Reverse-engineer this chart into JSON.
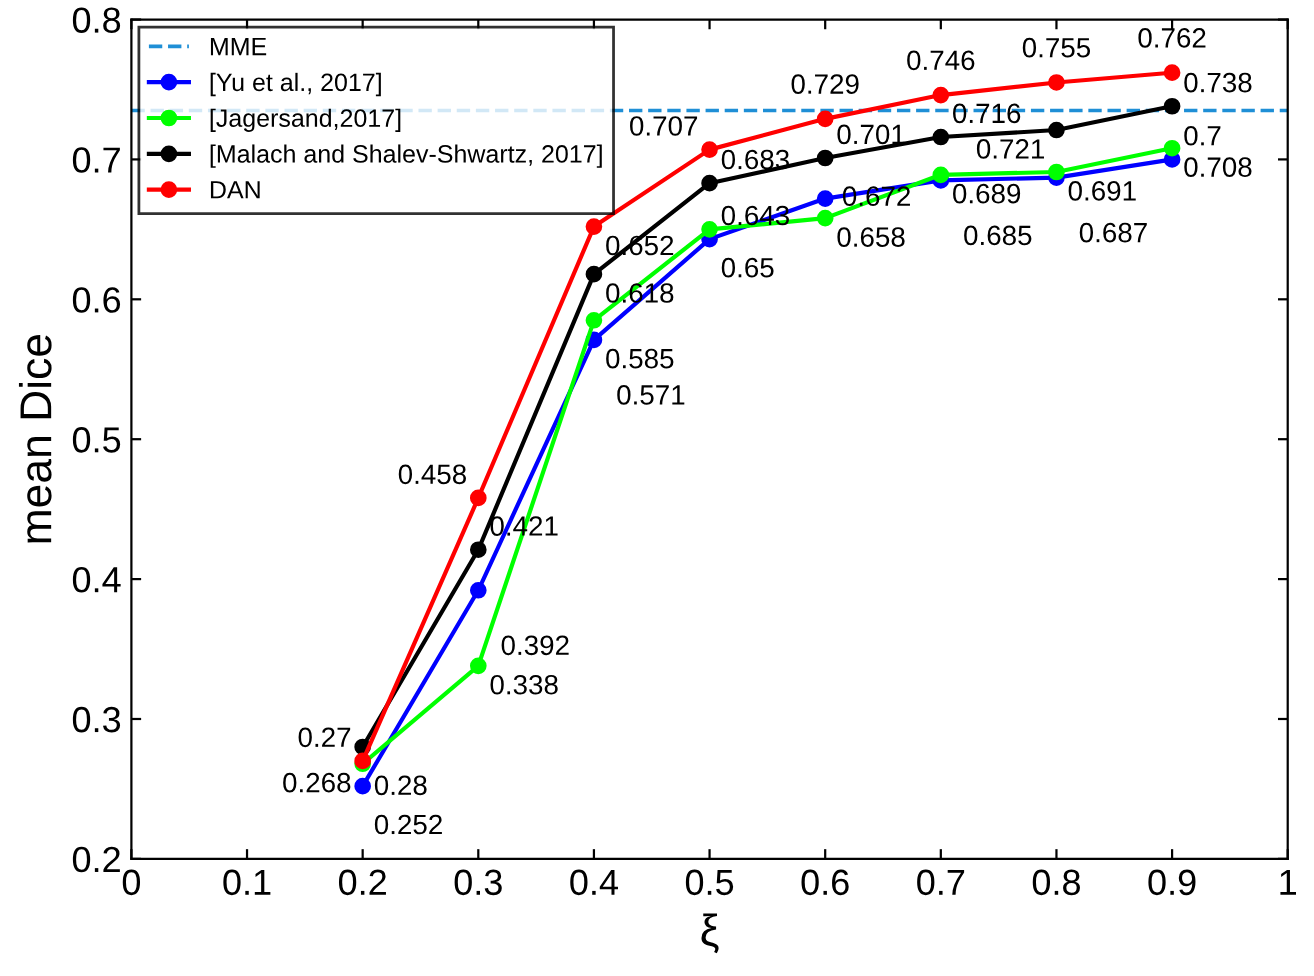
{
  "chart_data": {
    "type": "line",
    "xlabel": "ξ",
    "ylabel": "mean Dice",
    "x": [
      0.2,
      0.3,
      0.4,
      0.5,
      0.6,
      0.7,
      0.8,
      0.9
    ],
    "series": [
      {
        "name": "[Yu et al., 2017]",
        "color": "#0000ff",
        "values": [
          0.252,
          0.392,
          0.571,
          0.643,
          0.672,
          0.685,
          0.687,
          0.7
        ]
      },
      {
        "name": "[Jagersand,2017]",
        "color": "#00ff00",
        "values": [
          0.268,
          0.338,
          0.585,
          0.65,
          0.658,
          0.689,
          0.691,
          0.708
        ]
      },
      {
        "name": "[Malach and Shalev-Shwartz, 2017]",
        "color": "#000000",
        "values": [
          0.28,
          0.421,
          0.618,
          0.683,
          0.701,
          0.716,
          0.721,
          0.738
        ]
      },
      {
        "name": "DAN",
        "color": "#ff0000",
        "values": [
          0.27,
          0.458,
          0.652,
          0.707,
          0.729,
          0.746,
          0.755,
          0.762
        ]
      }
    ],
    "ref_lines": [
      {
        "axis": "y",
        "value": 0.735,
        "label": "MME",
        "color": "#1f8fd6",
        "line_style": "dashed"
      }
    ],
    "xlim": [
      0,
      1
    ],
    "ylim": [
      0.2,
      0.8
    ],
    "xticks": [
      0,
      0.1,
      0.2,
      0.3,
      0.4,
      0.5,
      0.6,
      0.7,
      0.8,
      0.9,
      1
    ],
    "yticks": [
      0.2,
      0.3,
      0.4,
      0.5,
      0.6,
      0.7,
      0.8
    ],
    "marker": "circle",
    "line_style": "solid",
    "data_labels": true,
    "legend": "top left",
    "grid": false
  }
}
